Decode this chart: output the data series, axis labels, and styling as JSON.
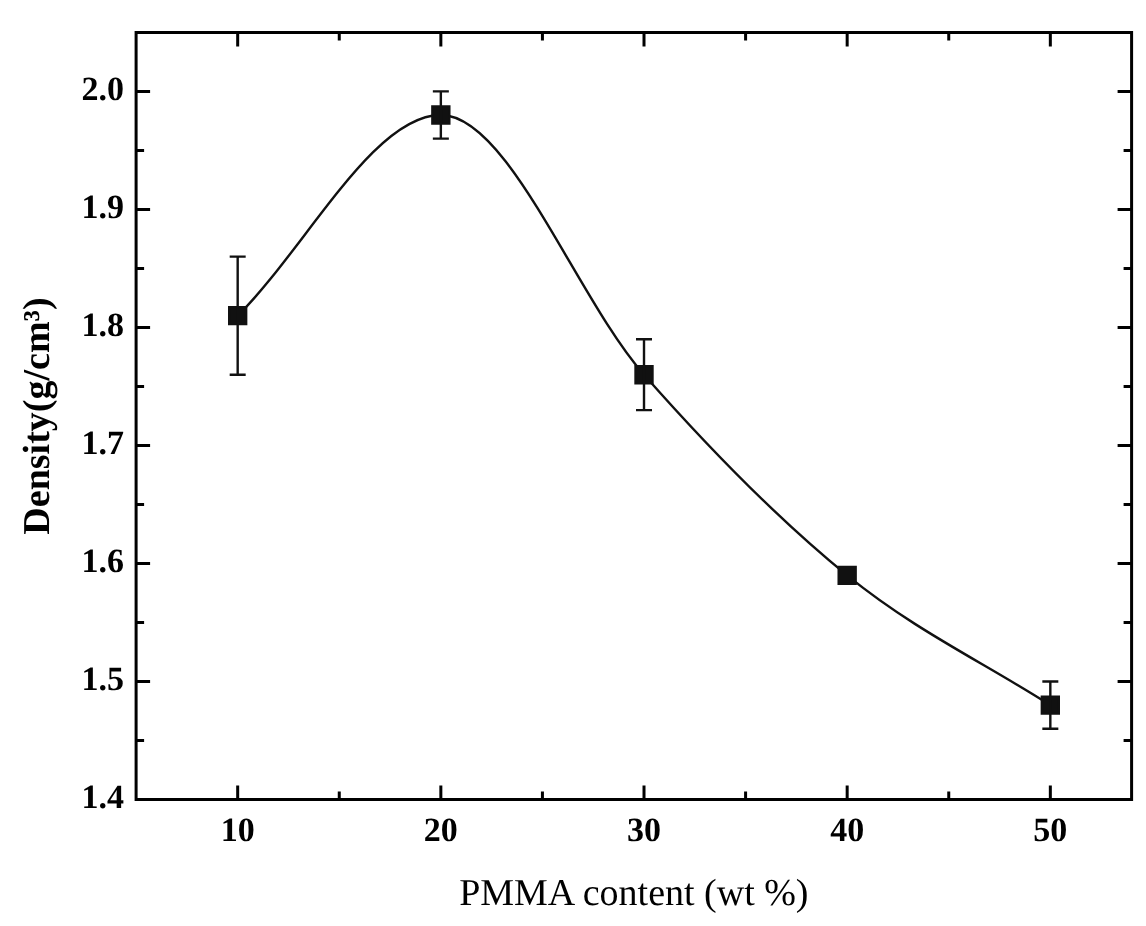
{
  "chart_data": {
    "type": "line",
    "xlabel": "PMMA content (wt %)",
    "ylabel": "Density(g/cm³)",
    "x": [
      10,
      20,
      30,
      40,
      50
    ],
    "series": [
      {
        "color": "#111111",
        "values": [
          1.81,
          1.98,
          1.76,
          1.59,
          1.48
        ],
        "errors": [
          0.05,
          0.02,
          0.03,
          null,
          0.02
        ]
      }
    ],
    "xlim": [
      5,
      54
    ],
    "ylim": [
      1.4,
      2.05
    ],
    "xticks": [
      10,
      {
        "value": 15,
        "label": null
      },
      20,
      {
        "value": 25,
        "label": null
      },
      30,
      {
        "value": 35,
        "label": null
      },
      40,
      {
        "value": 45,
        "label": null
      },
      50
    ],
    "yticks": [
      1.4,
      {
        "value": 1.45,
        "label": null
      },
      1.5,
      {
        "value": 1.55,
        "label": null
      },
      1.6,
      {
        "value": 1.65,
        "label": null
      },
      1.7,
      {
        "value": 1.75,
        "label": null
      },
      1.8,
      {
        "value": 1.85,
        "label": null
      },
      1.9,
      {
        "value": 1.95,
        "label": null
      },
      {
        "value": 2,
        "label": "2.0"
      }
    ],
    "marker": "square",
    "line_style": "solid",
    "grid": false,
    "legend": false
  }
}
